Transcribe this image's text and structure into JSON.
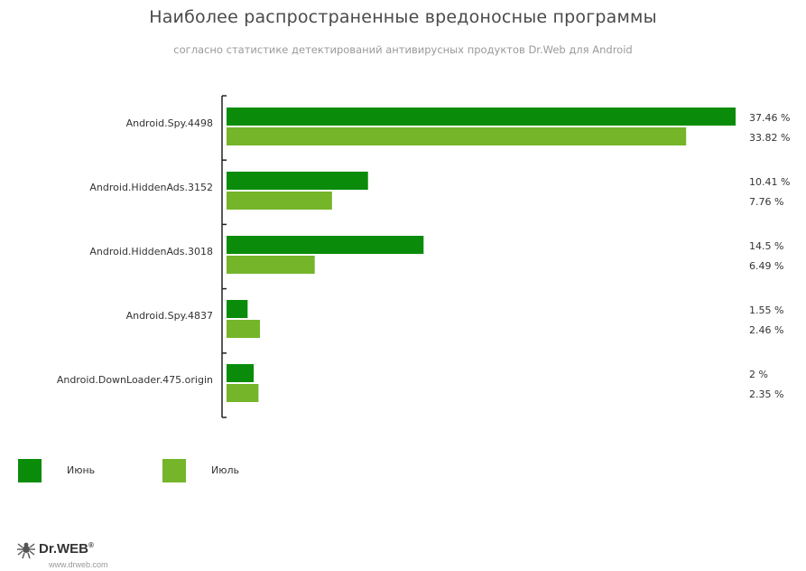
{
  "chart_data": {
    "type": "bar",
    "orientation": "horizontal",
    "title": "Наиболее распространенные вредоносные программы",
    "subtitle": "согласно статистике детектирований антивирусных продуктов Dr.Web для Android",
    "categories": [
      "Android.Spy.4498",
      "Android.HiddenAds.3152",
      "Android.HiddenAds.3018",
      "Android.Spy.4837",
      "Android.DownLoader.475.origin"
    ],
    "series": [
      {
        "name": "Июнь",
        "color": "#0a8c0a",
        "values": [
          37.46,
          10.41,
          14.5,
          1.55,
          2
        ],
        "labels": [
          "37.46 %",
          "10.41 %",
          "14.5 %",
          "1.55 %",
          "2 %"
        ]
      },
      {
        "name": "Июль",
        "color": "#74b52a",
        "values": [
          33.82,
          7.76,
          6.49,
          2.46,
          2.35
        ],
        "labels": [
          "33.82 %",
          "7.76 %",
          "6.49 %",
          "2.46 %",
          "2.35 %"
        ]
      }
    ],
    "xlim": [
      0,
      37.46
    ],
    "legend": "bottom-left",
    "grid": false
  },
  "brand": {
    "name": "Dr.WEB",
    "mark": "®",
    "url": "www.drweb.com"
  }
}
